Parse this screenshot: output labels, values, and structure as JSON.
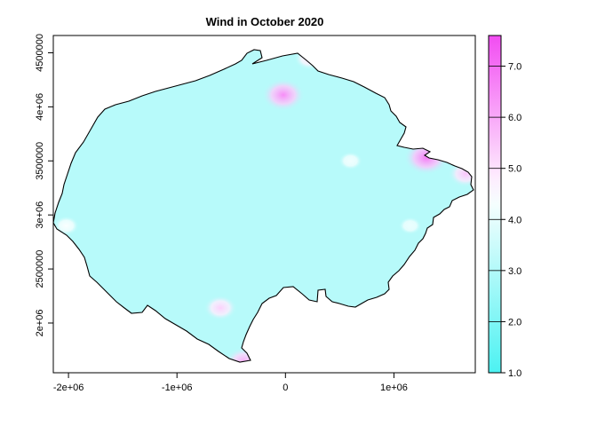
{
  "chart_data": {
    "type": "heatmap",
    "title": "Wind in October 2020",
    "xlabel": "",
    "ylabel": "",
    "x_ticks": [
      {
        "value": -2000000,
        "label": "-2e+06"
      },
      {
        "value": -1000000,
        "label": "-1e+06"
      },
      {
        "value": 0,
        "label": "0"
      },
      {
        "value": 1000000,
        "label": "1e+06"
      }
    ],
    "y_ticks": [
      {
        "value": 2000000,
        "label": "2e+06"
      },
      {
        "value": 2500000,
        "label": "2500000"
      },
      {
        "value": 3000000,
        "label": "3e+06"
      },
      {
        "value": 3500000,
        "label": "3500000"
      },
      {
        "value": 4000000,
        "label": "4e+06"
      },
      {
        "value": 4500000,
        "label": "4500000"
      }
    ],
    "xlim": [
      -2140000,
      1750000
    ],
    "ylim": [
      1540000,
      4660000
    ],
    "colorbar": {
      "range": [
        1.0,
        7.6
      ],
      "ticks": [
        {
          "value": 1.0,
          "label": "1.0"
        },
        {
          "value": 2.0,
          "label": "2.0"
        },
        {
          "value": 3.0,
          "label": "3.0"
        },
        {
          "value": 4.0,
          "label": "4.0"
        },
        {
          "value": 5.0,
          "label": "5.0"
        },
        {
          "value": 6.0,
          "label": "6.0"
        },
        {
          "value": 7.0,
          "label": "7.0"
        }
      ],
      "colors": [
        "#4cf2f2",
        "#ffffff",
        "#f24cf2"
      ]
    },
    "region_typical_value": 3.1,
    "hotspots": [
      {
        "x": -20000,
        "y": 4110000,
        "value": 6.5
      },
      {
        "x": 1300000,
        "y": 3530000,
        "value": 6.8
      },
      {
        "x": 1660000,
        "y": 3380000,
        "value": 5.5
      },
      {
        "x": -600000,
        "y": 2140000,
        "value": 5.3
      },
      {
        "x": -380000,
        "y": 1640000,
        "value": 6.0
      },
      {
        "x": 220000,
        "y": 4450000,
        "value": 5.0
      },
      {
        "x": -2020000,
        "y": 2900000,
        "value": 4.4
      },
      {
        "x": 600000,
        "y": 3500000,
        "value": 4.2
      },
      {
        "x": 1150000,
        "y": 2900000,
        "value": 4.1
      }
    ],
    "grid": false,
    "legend": "right"
  }
}
